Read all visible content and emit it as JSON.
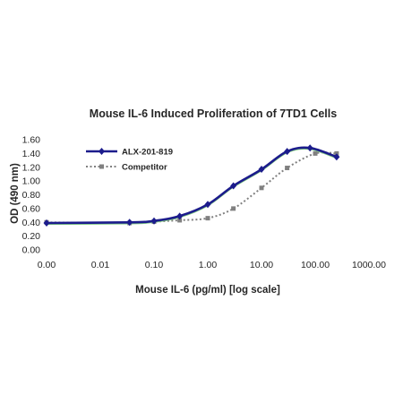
{
  "chart_data": {
    "type": "line",
    "title": "Mouse IL-6 Induced Proliferation of 7TD1 Cells",
    "xlabel": "Mouse IL-6 (pg/ml) [log scale]",
    "ylabel": "OD (490 nm)",
    "x_scale": "log",
    "x_ticks": [
      "0.00",
      "0.01",
      "0.10",
      "1.00",
      "10.00",
      "100.00",
      "1000.00"
    ],
    "y_ticks": [
      "0.00",
      "0.20",
      "0.40",
      "0.60",
      "0.80",
      "1.00",
      "1.20",
      "1.40",
      "1.60"
    ],
    "ylim": [
      0,
      1.6
    ],
    "grid": false,
    "legend_position": "top-left",
    "series": [
      {
        "name": "ALX-201-819",
        "color": "#1c1c8c",
        "line_style": "solid",
        "marker": "diamond",
        "x": [
          0.001,
          0.035,
          0.1,
          0.3,
          1,
          3,
          10,
          30,
          80,
          250
        ],
        "y": [
          0.39,
          0.4,
          0.42,
          0.49,
          0.66,
          0.93,
          1.17,
          1.43,
          1.48,
          1.35
        ]
      },
      {
        "name": "Competitor",
        "color": "#808080",
        "line_style": "dotted",
        "marker": "square",
        "x": [
          0.001,
          0.035,
          0.1,
          0.3,
          1,
          3,
          10,
          30,
          100,
          250
        ],
        "y": [
          0.4,
          0.39,
          0.41,
          0.43,
          0.46,
          0.6,
          0.9,
          1.19,
          1.4,
          1.4
        ]
      }
    ]
  }
}
